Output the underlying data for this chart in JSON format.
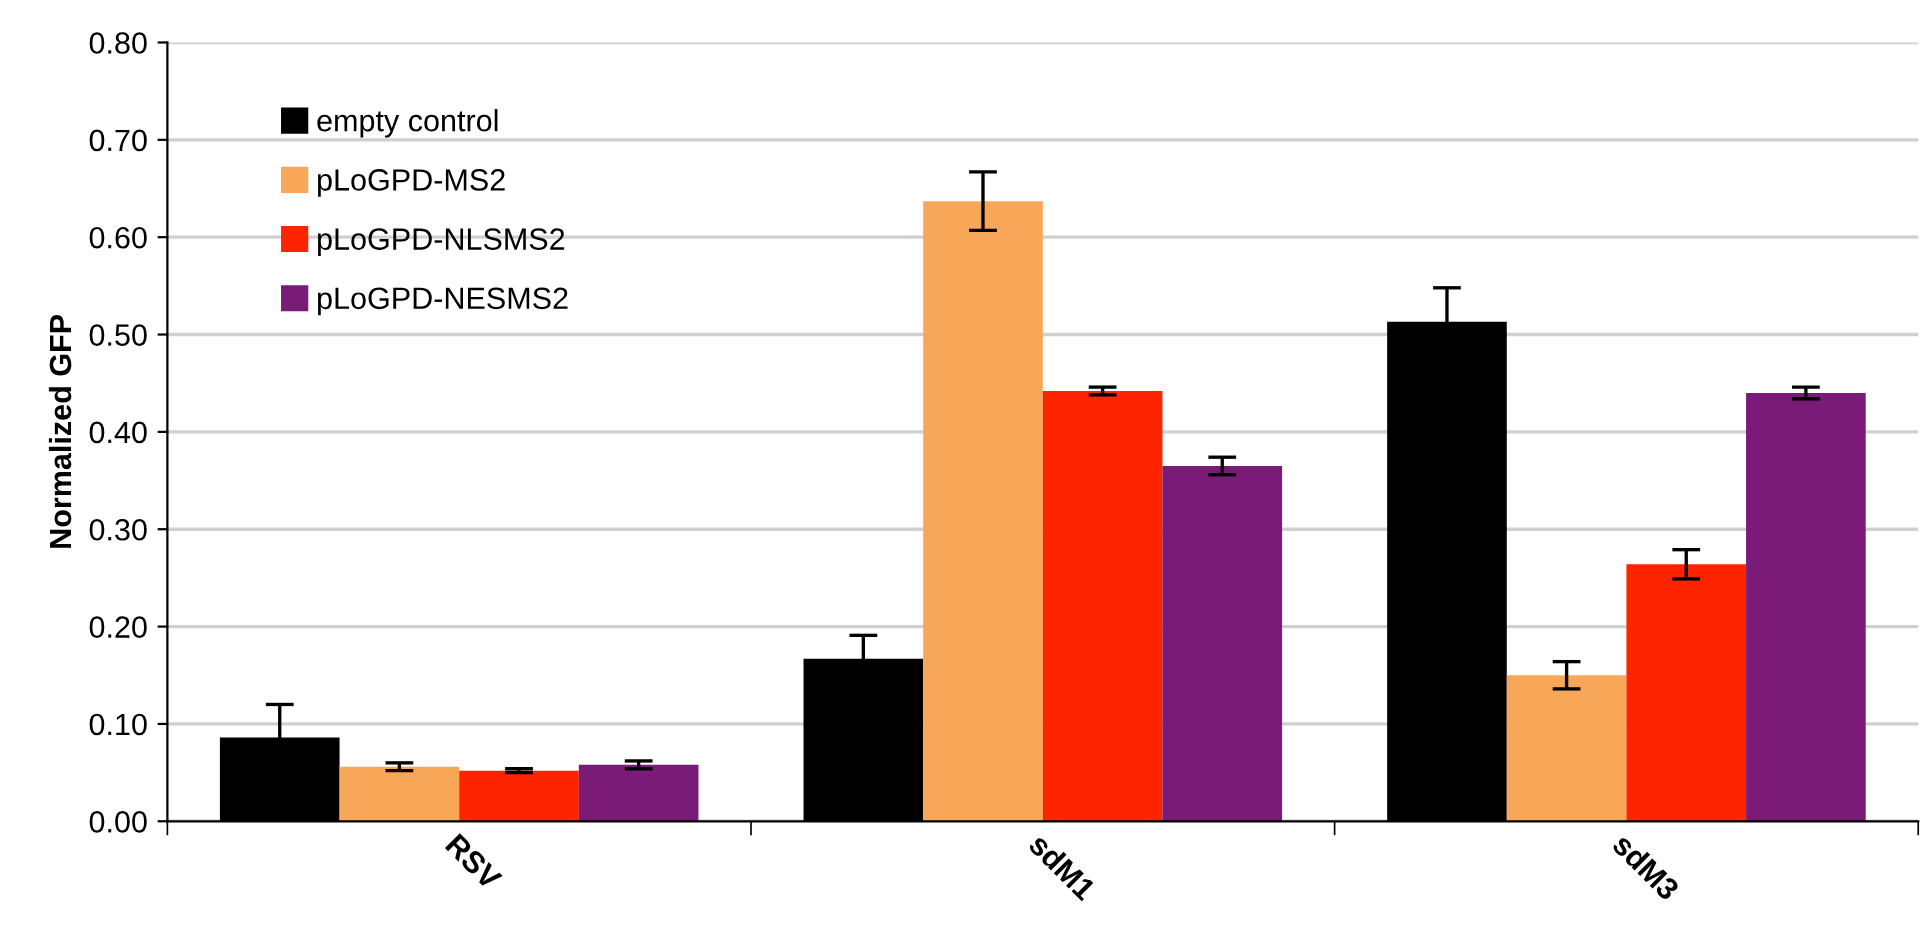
{
  "chart_data": {
    "type": "bar",
    "ylabel": "Normalized GFP",
    "categories": [
      "RSV",
      "sdM1",
      "sdM3"
    ],
    "series": [
      {
        "name": "empty control",
        "color": "#000000",
        "values": [
          0.086,
          0.167,
          0.513
        ],
        "errors": [
          0.034,
          0.024,
          0.035
        ]
      },
      {
        "name": "pLoGPD-MS2",
        "color": "#f8a758",
        "values": [
          0.056,
          0.637,
          0.15
        ],
        "errors": [
          0.004,
          0.03,
          0.014
        ]
      },
      {
        "name": "pLoGPD-NLSMS2",
        "color": "#ff2400",
        "values": [
          0.052,
          0.442,
          0.264
        ],
        "errors": [
          0.002,
          0.004,
          0.015
        ]
      },
      {
        "name": "pLoGPD-NESMS2",
        "color": "#7b1b78",
        "values": [
          0.058,
          0.365,
          0.44
        ],
        "errors": [
          0.004,
          0.009,
          0.006
        ]
      }
    ],
    "ylim": [
      0,
      0.8
    ],
    "yticks": [
      {
        "value": 0,
        "label": "0.00"
      },
      {
        "value": 0.1,
        "label": "0.10"
      },
      {
        "value": 0.2,
        "label": "0.20"
      },
      {
        "value": 0.3,
        "label": "0.30"
      },
      {
        "value": 0.4,
        "label": "0.40"
      },
      {
        "value": 0.5,
        "label": "0.50"
      },
      {
        "value": 0.6,
        "label": "0.60"
      },
      {
        "value": 0.7,
        "label": "0.70"
      },
      {
        "value": 0.8,
        "label": "0.80"
      }
    ],
    "grid": "y",
    "legend": "top left"
  }
}
